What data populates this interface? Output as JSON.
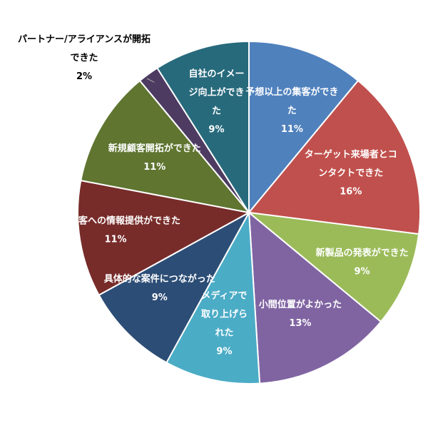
{
  "chart_data": {
    "type": "pie",
    "title": "",
    "start_angle_deg": 0,
    "direction": "clockwise",
    "slices": [
      {
        "label": [
          "予想以上の集客ができ",
          "た"
        ],
        "value": 11,
        "value_label": "11%",
        "color": "#4f81bd"
      },
      {
        "label": [
          "ターゲット来場者とコ",
          "ンタクトできた"
        ],
        "value": 16,
        "value_label": "16%",
        "color": "#c0504d"
      },
      {
        "label": [
          "新製品の発表ができた"
        ],
        "value": 9,
        "value_label": "9%",
        "color": "#9bbb59"
      },
      {
        "label": [
          "小間位置がよかった"
        ],
        "value": 13,
        "value_label": "13%",
        "color": "#8064a2"
      },
      {
        "label": [
          "メディアで",
          "取り上げら",
          "れた"
        ],
        "value": 9,
        "value_label": "9%",
        "color": "#4bacc6"
      },
      {
        "label": [
          "具体的な案件につながった"
        ],
        "value": 9,
        "value_label": "9%",
        "color": "#2c4d75"
      },
      {
        "label": [
          "既存顧客への情報提供ができた"
        ],
        "value": 11,
        "value_label": "11%",
        "color": "#772c2a"
      },
      {
        "label": [
          "新規顧客開拓ができた"
        ],
        "value": 11,
        "value_label": "11%",
        "color": "#5f7530"
      },
      {
        "label": [
          "パートナー/アライアンスが開拓",
          "できた"
        ],
        "value": 2,
        "value_label": "2%",
        "color": "#4d3b62",
        "label_outside": true
      },
      {
        "label": [
          "自社のイメー",
          "ジ向上ができ",
          "た"
        ],
        "value": 9,
        "value_label": "9%",
        "color": "#276a7c"
      }
    ]
  }
}
